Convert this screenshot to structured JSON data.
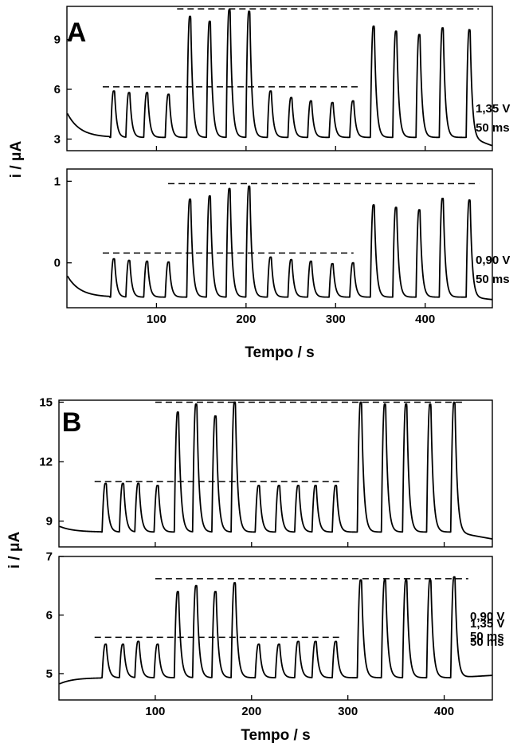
{
  "chart_data": [
    {
      "type": "line",
      "panel_label": "A",
      "xlabel": "Tempo / s",
      "ylabel": "i / μA",
      "xlim": [
        0,
        475
      ],
      "xticks": [
        100,
        200,
        300,
        400
      ],
      "subplots": [
        {
          "condition_label": [
            "1,35 V",
            "50 ms"
          ],
          "ylim": [
            2.3,
            11
          ],
          "yticks": [
            3,
            6,
            9
          ],
          "baseline": 3.1,
          "start_value": 4.6,
          "injection_start": 48,
          "end_value": 2.6,
          "peaks": [
            {
              "t": 52,
              "i": 5.9
            },
            {
              "t": 69,
              "i": 5.8
            },
            {
              "t": 89,
              "i": 5.8
            },
            {
              "t": 113,
              "i": 5.7
            },
            {
              "t": 137,
              "i": 10.4
            },
            {
              "t": 159,
              "i": 10.1
            },
            {
              "t": 181,
              "i": 10.8
            },
            {
              "t": 203,
              "i": 10.7
            },
            {
              "t": 227,
              "i": 5.9
            },
            {
              "t": 250,
              "i": 5.5
            },
            {
              "t": 272,
              "i": 5.3
            },
            {
              "t": 296,
              "i": 5.2
            },
            {
              "t": 319,
              "i": 5.3
            },
            {
              "t": 342,
              "i": 9.8
            },
            {
              "t": 367,
              "i": 9.5
            },
            {
              "t": 393,
              "i": 9.3
            },
            {
              "t": 419,
              "i": 9.7
            },
            {
              "t": 449,
              "i": 9.6
            }
          ],
          "reference_lines": [
            {
              "y": 6.15,
              "x_from": 40,
              "x_to": 325
            },
            {
              "y": 10.85,
              "x_from": 123,
              "x_to": 460
            }
          ]
        },
        {
          "condition_label": [
            "0,90 V",
            "50 ms"
          ],
          "ylim": [
            -0.55,
            1.15
          ],
          "yticks": [
            0,
            1
          ],
          "baseline": -0.42,
          "start_value": -0.15,
          "injection_start": 48,
          "end_value": -0.45,
          "peaks": [
            {
              "t": 52,
              "i": 0.05
            },
            {
              "t": 69,
              "i": 0.03
            },
            {
              "t": 89,
              "i": 0.02
            },
            {
              "t": 113,
              "i": 0.01
            },
            {
              "t": 137,
              "i": 0.78
            },
            {
              "t": 159,
              "i": 0.82
            },
            {
              "t": 181,
              "i": 0.91
            },
            {
              "t": 203,
              "i": 0.94
            },
            {
              "t": 227,
              "i": 0.07
            },
            {
              "t": 250,
              "i": 0.04
            },
            {
              "t": 272,
              "i": 0.02
            },
            {
              "t": 296,
              "i": -0.01
            },
            {
              "t": 319,
              "i": 0.0
            },
            {
              "t": 342,
              "i": 0.71
            },
            {
              "t": 367,
              "i": 0.68
            },
            {
              "t": 393,
              "i": 0.65
            },
            {
              "t": 419,
              "i": 0.79
            },
            {
              "t": 449,
              "i": 0.77
            }
          ],
          "reference_lines": [
            {
              "y": 0.12,
              "x_from": 40,
              "x_to": 320
            },
            {
              "y": 0.97,
              "x_from": 113,
              "x_to": 460
            }
          ]
        }
      ]
    },
    {
      "type": "line",
      "panel_label": "B",
      "xlabel": "Tempo / s",
      "ylabel": "i / μA",
      "xlim": [
        0,
        450
      ],
      "xticks": [
        100,
        200,
        300,
        400
      ],
      "subplots": [
        {
          "condition_label": [
            "1,35 V",
            "50 ms"
          ],
          "ylim": [
            7.7,
            15.1
          ],
          "yticks": [
            9,
            12,
            15
          ],
          "baseline": 8.45,
          "start_value": 8.75,
          "injection_start": 44,
          "end_value": 8.1,
          "peaks": [
            {
              "t": 48,
              "i": 10.9
            },
            {
              "t": 66,
              "i": 10.9
            },
            {
              "t": 82,
              "i": 10.9
            },
            {
              "t": 102,
              "i": 10.8
            },
            {
              "t": 123,
              "i": 14.5
            },
            {
              "t": 142,
              "i": 14.9
            },
            {
              "t": 162,
              "i": 14.3
            },
            {
              "t": 182,
              "i": 15.0
            },
            {
              "t": 207,
              "i": 10.8
            },
            {
              "t": 228,
              "i": 10.8
            },
            {
              "t": 248,
              "i": 10.8
            },
            {
              "t": 266,
              "i": 10.8
            },
            {
              "t": 287,
              "i": 10.8
            },
            {
              "t": 313,
              "i": 15.0
            },
            {
              "t": 338,
              "i": 14.9
            },
            {
              "t": 360,
              "i": 14.9
            },
            {
              "t": 385,
              "i": 14.9
            },
            {
              "t": 410,
              "i": 15.0
            }
          ],
          "reference_lines": [
            {
              "y": 11.0,
              "x_from": 37,
              "x_to": 295
            },
            {
              "y": 15.0,
              "x_from": 100,
              "x_to": 420
            }
          ]
        },
        {
          "condition_label": [
            "0,90 V",
            "50 ms"
          ],
          "ylim": [
            4.55,
            7.0
          ],
          "yticks": [
            5,
            6,
            7
          ],
          "baseline": 4.93,
          "start_value": 4.82,
          "injection_start": 44,
          "end_value": 4.97,
          "peaks": [
            {
              "t": 48,
              "i": 5.5
            },
            {
              "t": 66,
              "i": 5.5
            },
            {
              "t": 82,
              "i": 5.55
            },
            {
              "t": 102,
              "i": 5.5
            },
            {
              "t": 123,
              "i": 6.4
            },
            {
              "t": 142,
              "i": 6.5
            },
            {
              "t": 162,
              "i": 6.4
            },
            {
              "t": 182,
              "i": 6.55
            },
            {
              "t": 207,
              "i": 5.5
            },
            {
              "t": 228,
              "i": 5.5
            },
            {
              "t": 248,
              "i": 5.55
            },
            {
              "t": 266,
              "i": 5.55
            },
            {
              "t": 287,
              "i": 5.55
            },
            {
              "t": 313,
              "i": 6.6
            },
            {
              "t": 338,
              "i": 6.6
            },
            {
              "t": 360,
              "i": 6.6
            },
            {
              "t": 385,
              "i": 6.6
            },
            {
              "t": 410,
              "i": 6.65
            }
          ],
          "reference_lines": [
            {
              "y": 5.62,
              "x_from": 37,
              "x_to": 295
            },
            {
              "y": 6.62,
              "x_from": 100,
              "x_to": 425
            }
          ]
        }
      ]
    }
  ]
}
